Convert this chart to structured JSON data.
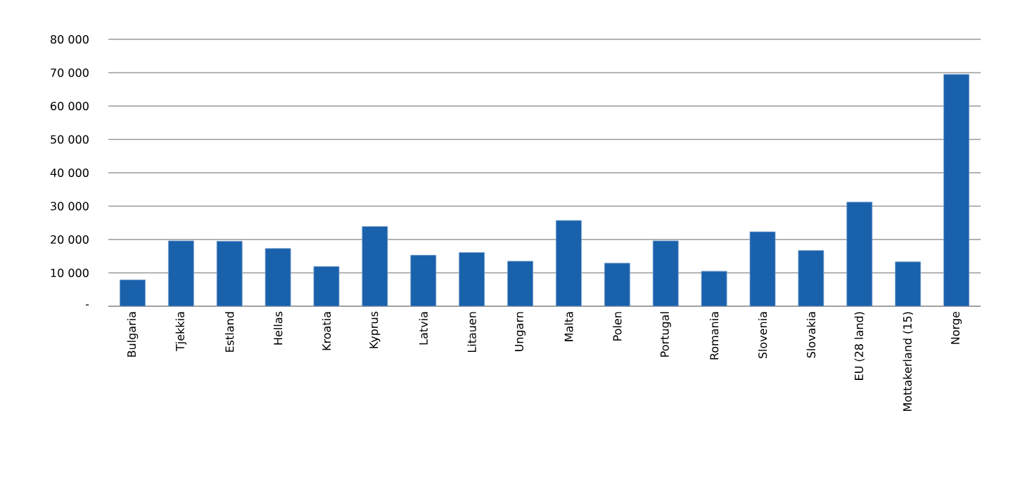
{
  "chart_data": {
    "type": "bar",
    "categories": [
      "Bulgaria",
      "Tjekkia",
      "Estland",
      "Hellas",
      "Kroatia",
      "Kyprus",
      "Latvia",
      "Litauen",
      "Ungarn",
      "Malta",
      "Polen",
      "Portugal",
      "Romania",
      "Slovenia",
      "Slovakia",
      "EU (28 land)",
      "Mottakerland (15)",
      "Norge"
    ],
    "values": [
      7900,
      19600,
      19500,
      17300,
      11900,
      23900,
      15300,
      16100,
      13500,
      25700,
      12900,
      19600,
      10500,
      22300,
      16700,
      31200,
      13300,
      69500
    ],
    "color": "#1a61ac",
    "ylim": [
      0,
      80000
    ],
    "yticks": [
      {
        "value": 0,
        "label": "-"
      },
      {
        "value": 10000,
        "label": "10 000"
      },
      {
        "value": 20000,
        "label": "20 000"
      },
      {
        "value": 30000,
        "label": "30 000"
      },
      {
        "value": 40000,
        "label": "40 000"
      },
      {
        "value": 50000,
        "label": "50 000"
      },
      {
        "value": 60000,
        "label": "60 000"
      },
      {
        "value": 70000,
        "label": "70 000"
      },
      {
        "value": 80000,
        "label": "80 000"
      }
    ],
    "grid": "y"
  }
}
